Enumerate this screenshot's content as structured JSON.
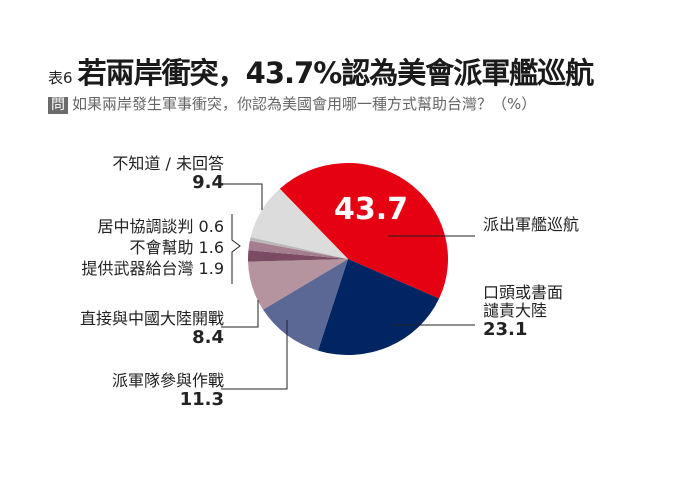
{
  "header": {
    "table_no": "表6",
    "title": "若兩岸衝突，43.7%認為美會派軍艦巡航",
    "q_badge": "問",
    "subtitle": "如果兩岸發生軍事衝突，你認為美國會用哪一種方式幫助台灣？（%）"
  },
  "chart_data": {
    "type": "pie",
    "title": "若兩岸衝突，43.7%認為美會派軍艦巡航",
    "unit": "%",
    "slices": [
      {
        "label": "派出軍艦巡航",
        "value": 43.7,
        "color": "#e50012",
        "value_text": "43.7"
      },
      {
        "label": "口頭或書面譴責大陸",
        "label_lines": [
          "口頭或書面",
          "譴責大陸"
        ],
        "value": 23.1,
        "color": "#002562",
        "value_text": "23.1"
      },
      {
        "label": "派軍隊參與作戰",
        "value": 11.3,
        "color": "#5b6795",
        "value_text": "11.3"
      },
      {
        "label": "直接與中國大陸開戰",
        "value": 8.4,
        "color": "#b5949f",
        "value_text": "8.4"
      },
      {
        "label": "提供武器給台灣",
        "value": 1.9,
        "color": "#7b4a63",
        "value_text": "1.9"
      },
      {
        "label": "不會幫助",
        "value": 1.6,
        "color": "#a47d8e",
        "value_text": "1.6"
      },
      {
        "label": "居中協調談判",
        "value": 0.6,
        "color": "#b9b9b9",
        "value_text": "0.6"
      },
      {
        "label": "不知道／未回答",
        "label_text": "不知道 / 未回答",
        "value": 9.4,
        "color": "#dcdcdc",
        "value_text": "9.4"
      }
    ]
  }
}
